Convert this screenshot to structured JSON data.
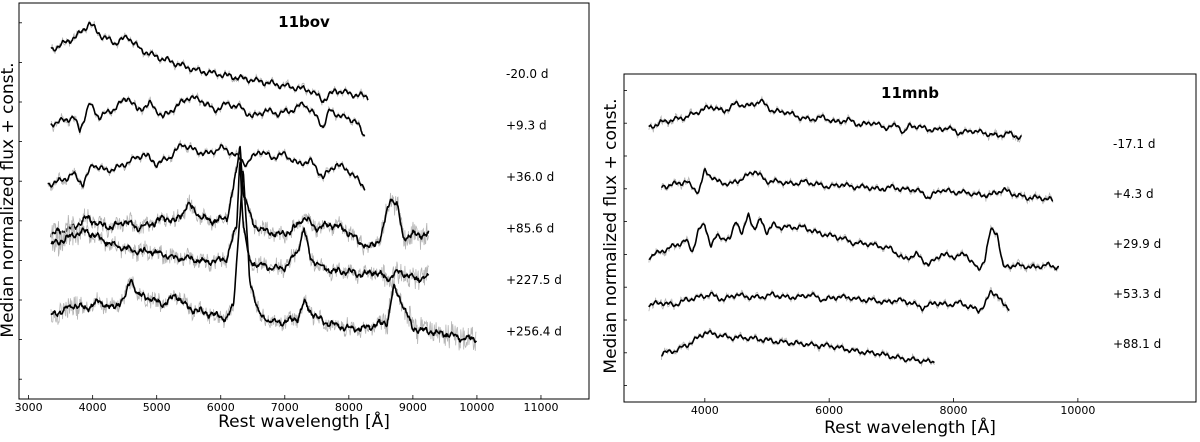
{
  "chart_data": [
    {
      "type": "line",
      "title": "11bov",
      "xlabel": "Rest wavelength [Å]",
      "ylabel": "Median normalized flux + const.",
      "xlim": [
        2850,
        11750
      ],
      "x_ticks": [
        3000,
        4000,
        5000,
        6000,
        7000,
        8000,
        9000,
        10000,
        11000
      ],
      "y_ticks_labeled": false,
      "grid": false,
      "series": [
        {
          "name": "-20.0 d",
          "range": [
            3350,
            8300
          ],
          "x": [
            3350,
            3550,
            3750,
            3950,
            4150,
            4350,
            4550,
            4750,
            5000,
            5300,
            5600,
            5900,
            6200,
            6500,
            6800,
            7100,
            7400,
            7600,
            7800,
            8000,
            8300
          ],
          "y": [
            4.6,
            4.7,
            4.8,
            5.0,
            4.8,
            4.7,
            4.8,
            4.6,
            4.5,
            4.4,
            4.3,
            4.25,
            4.2,
            4.15,
            4.1,
            4.05,
            4.0,
            3.85,
            4.0,
            3.95,
            3.9
          ]
        },
        {
          "name": "+9.3 d",
          "range": [
            3350,
            8250
          ],
          "x": [
            3350,
            3550,
            3700,
            3800,
            3950,
            4100,
            4300,
            4550,
            4700,
            4900,
            5100,
            5300,
            5500,
            5700,
            5900,
            6100,
            6300,
            6500,
            6700,
            6900,
            7100,
            7300,
            7500,
            7600,
            7700,
            7900,
            8100,
            8250
          ],
          "y": [
            3.5,
            3.55,
            3.6,
            3.4,
            3.8,
            3.6,
            3.7,
            3.9,
            3.7,
            3.8,
            3.6,
            3.75,
            3.9,
            3.85,
            3.7,
            3.8,
            3.75,
            3.6,
            3.7,
            3.65,
            3.7,
            3.8,
            3.6,
            3.45,
            3.7,
            3.6,
            3.55,
            3.3
          ]
        },
        {
          "name": "+36.0 d",
          "range": [
            3300,
            8250
          ],
          "x": [
            3300,
            3500,
            3700,
            3850,
            4000,
            4200,
            4400,
            4600,
            4800,
            5000,
            5200,
            5400,
            5600,
            5800,
            6000,
            6200,
            6400,
            6600,
            6800,
            7000,
            7200,
            7400,
            7600,
            7800,
            8000,
            8250
          ],
          "y": [
            2.6,
            2.65,
            2.75,
            2.6,
            2.9,
            2.8,
            2.85,
            2.95,
            3.05,
            2.9,
            3.0,
            3.2,
            3.1,
            3.05,
            3.15,
            3.05,
            2.9,
            3.1,
            3.0,
            3.05,
            2.9,
            2.95,
            2.7,
            2.9,
            2.8,
            2.55
          ]
        },
        {
          "name": "+85.6 d",
          "range": [
            3350,
            9250
          ],
          "x": [
            3350,
            3500,
            3700,
            3900,
            4100,
            4300,
            4500,
            4700,
            4900,
            5100,
            5300,
            5500,
            5700,
            5900,
            6100,
            6250,
            6300,
            6350,
            6500,
            6700,
            6900,
            7100,
            7300,
            7500,
            7700,
            7900,
            8100,
            8300,
            8500,
            8650,
            8750,
            8850,
            9000,
            9250
          ],
          "y": [
            1.85,
            1.9,
            1.95,
            2.1,
            2.0,
            1.95,
            2.05,
            1.95,
            2.0,
            2.1,
            2.05,
            2.3,
            2.1,
            2.05,
            2.1,
            2.8,
            3.2,
            2.5,
            2.0,
            1.9,
            1.85,
            1.9,
            2.1,
            1.95,
            2.0,
            1.95,
            1.8,
            1.65,
            1.8,
            2.4,
            2.3,
            1.8,
            1.85,
            1.85
          ]
        },
        {
          "name": "+227.5 d",
          "range": [
            3350,
            9250
          ],
          "x": [
            3350,
            3500,
            3700,
            3900,
            4100,
            4300,
            4500,
            4700,
            4900,
            5100,
            5300,
            5500,
            5700,
            5900,
            6100,
            6250,
            6300,
            6350,
            6450,
            6600,
            6800,
            7000,
            7200,
            7300,
            7400,
            7600,
            7800,
            8000,
            8200,
            8400,
            8600,
            8800,
            9000,
            9250
          ],
          "y": [
            1.7,
            1.75,
            1.85,
            1.9,
            1.8,
            1.7,
            1.65,
            1.6,
            1.6,
            1.55,
            1.5,
            1.5,
            1.45,
            1.45,
            1.5,
            2.0,
            3.0,
            2.0,
            1.45,
            1.4,
            1.35,
            1.35,
            1.6,
            1.95,
            1.5,
            1.35,
            1.3,
            1.3,
            1.25,
            1.3,
            1.2,
            1.3,
            1.2,
            1.2
          ]
        },
        {
          "name": "+256.4 d",
          "range": [
            3350,
            10000
          ],
          "x": [
            3350,
            3500,
            3700,
            3900,
            4100,
            4300,
            4500,
            4600,
            4700,
            4900,
            5100,
            5300,
            5500,
            5700,
            5900,
            6100,
            6200,
            6280,
            6350,
            6450,
            6600,
            6800,
            7000,
            7200,
            7300,
            7400,
            7600,
            7800,
            8000,
            8200,
            8400,
            8600,
            8700,
            8800,
            9000,
            9300,
            9600,
            9800,
            10000
          ],
          "y": [
            0.65,
            0.7,
            0.8,
            0.75,
            0.85,
            0.75,
            0.9,
            1.2,
            0.95,
            0.9,
            0.8,
            0.95,
            0.75,
            0.7,
            0.65,
            0.6,
            0.8,
            1.9,
            2.8,
            1.2,
            0.65,
            0.55,
            0.55,
            0.6,
            0.85,
            0.7,
            0.55,
            0.5,
            0.45,
            0.45,
            0.5,
            0.55,
            1.05,
            0.9,
            0.45,
            0.4,
            0.35,
            0.3,
            0.3
          ]
        }
      ]
    },
    {
      "type": "line",
      "title": "11mnb",
      "xlabel": "Rest wavelength [Å]",
      "ylabel": "Median normalized flux + const.",
      "xlim": [
        2700,
        11900
      ],
      "x_ticks": [
        4000,
        6000,
        8000,
        10000
      ],
      "y_ticks_labeled": false,
      "grid": false,
      "series": [
        {
          "name": "-17.1 d",
          "range": [
            3100,
            9100
          ],
          "x": [
            3100,
            3300,
            3500,
            3700,
            3900,
            4100,
            4300,
            4500,
            4700,
            4900,
            5100,
            5300,
            5500,
            5700,
            5900,
            6100,
            6300,
            6500,
            6700,
            6900,
            7100,
            7200,
            7300,
            7500,
            7700,
            7900,
            8100,
            8300,
            8500,
            8700,
            8900,
            9100
          ],
          "y": [
            4.3,
            4.4,
            4.45,
            4.5,
            4.6,
            4.7,
            4.6,
            4.75,
            4.7,
            4.8,
            4.6,
            4.6,
            4.5,
            4.45,
            4.5,
            4.4,
            4.45,
            4.35,
            4.4,
            4.3,
            4.35,
            4.2,
            4.35,
            4.3,
            4.25,
            4.3,
            4.2,
            4.25,
            4.2,
            4.15,
            4.2,
            4.1
          ]
        },
        {
          "name": "+4.3 d",
          "range": [
            3300,
            9600
          ],
          "x": [
            3300,
            3500,
            3700,
            3900,
            4000,
            4200,
            4400,
            4600,
            4800,
            5000,
            5200,
            5400,
            5600,
            5800,
            6000,
            6200,
            6400,
            6600,
            6800,
            7000,
            7200,
            7400,
            7600,
            7800,
            8000,
            8200,
            8400,
            8600,
            8800,
            9000,
            9200,
            9400,
            9600
          ],
          "y": [
            3.2,
            3.25,
            3.3,
            3.1,
            3.5,
            3.3,
            3.25,
            3.35,
            3.5,
            3.3,
            3.3,
            3.25,
            3.3,
            3.25,
            3.2,
            3.25,
            3.2,
            3.2,
            3.15,
            3.2,
            3.15,
            3.15,
            3.0,
            3.15,
            3.1,
            3.1,
            3.05,
            3.05,
            3.15,
            3.05,
            3.0,
            3.0,
            2.95
          ]
        },
        {
          "name": "+29.9 d",
          "range": [
            3100,
            9700
          ],
          "x": [
            3100,
            3300,
            3500,
            3700,
            3800,
            3900,
            4000,
            4100,
            4200,
            4400,
            4500,
            4600,
            4700,
            4800,
            4900,
            5000,
            5100,
            5200,
            5400,
            5600,
            5800,
            6000,
            6200,
            6400,
            6600,
            6800,
            7000,
            7200,
            7400,
            7600,
            7800,
            8000,
            8200,
            8400,
            8500,
            8600,
            8700,
            8800,
            9000,
            9300,
            9500,
            9700
          ],
          "y": [
            1.9,
            2.0,
            2.1,
            2.2,
            2.0,
            2.4,
            2.5,
            2.1,
            2.3,
            2.2,
            2.6,
            2.3,
            2.7,
            2.4,
            2.6,
            2.35,
            2.5,
            2.45,
            2.45,
            2.45,
            2.35,
            2.3,
            2.25,
            2.15,
            2.15,
            2.1,
            2.05,
            1.85,
            1.95,
            1.75,
            1.95,
            1.9,
            1.95,
            1.65,
            1.85,
            2.4,
            2.35,
            1.7,
            1.75,
            1.7,
            1.75,
            1.7
          ]
        },
        {
          "name": "+53.3 d",
          "range": [
            3100,
            8900
          ],
          "x": [
            3100,
            3300,
            3500,
            3700,
            3900,
            4100,
            4300,
            4500,
            4700,
            4900,
            5100,
            5300,
            5500,
            5700,
            5900,
            6100,
            6300,
            6500,
            6700,
            6900,
            7100,
            7300,
            7500,
            7700,
            7900,
            8100,
            8300,
            8400,
            8500,
            8600,
            8700,
            8800,
            8900
          ],
          "y": [
            1.0,
            1.05,
            1.0,
            1.1,
            1.15,
            1.2,
            1.1,
            1.2,
            1.15,
            1.15,
            1.2,
            1.15,
            1.15,
            1.2,
            1.1,
            1.15,
            1.15,
            1.1,
            1.1,
            1.05,
            1.1,
            1.05,
            0.95,
            1.05,
            1.0,
            1.05,
            0.95,
            0.9,
            1.0,
            1.25,
            1.2,
            1.0,
            0.95
          ]
        },
        {
          "name": "+88.1 d",
          "range": [
            3300,
            7700
          ],
          "x": [
            3300,
            3500,
            3700,
            3900,
            4000,
            4200,
            4400,
            4600,
            4800,
            5000,
            5200,
            5400,
            5600,
            5800,
            6000,
            6200,
            6400,
            6600,
            6800,
            7000,
            7200,
            7400,
            7600,
            7700
          ],
          "y": [
            0.1,
            0.15,
            0.25,
            0.4,
            0.5,
            0.45,
            0.4,
            0.4,
            0.38,
            0.35,
            0.32,
            0.3,
            0.28,
            0.25,
            0.25,
            0.2,
            0.15,
            0.12,
            0.1,
            0.05,
            0.0,
            -0.02,
            -0.05,
            -0.05
          ]
        }
      ]
    }
  ]
}
